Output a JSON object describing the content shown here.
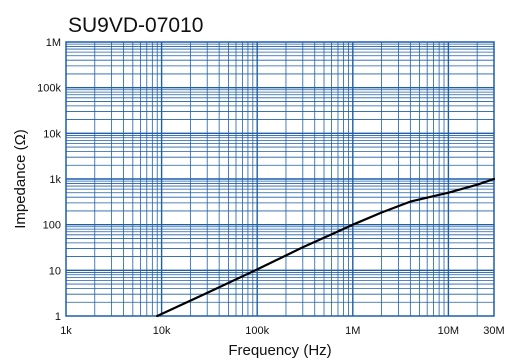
{
  "chart_data": {
    "type": "line",
    "title": "SU9VD-07010",
    "xlabel": "Frequency (Hz)",
    "ylabel": "Impedance (Ω)",
    "x_scale": "log",
    "y_scale": "log",
    "xlim": [
      1000,
      30000000
    ],
    "ylim": [
      1,
      1000000
    ],
    "x_ticks": [
      {
        "value": 1000,
        "label": "1k"
      },
      {
        "value": 10000,
        "label": "10k"
      },
      {
        "value": 100000,
        "label": "100k"
      },
      {
        "value": 1000000,
        "label": "1M"
      },
      {
        "value": 10000000,
        "label": "10M"
      },
      {
        "value": 30000000,
        "label": "30M"
      }
    ],
    "y_ticks": [
      {
        "value": 1,
        "label": "1"
      },
      {
        "value": 10,
        "label": "10"
      },
      {
        "value": 100,
        "label": "100"
      },
      {
        "value": 1000,
        "label": "1k"
      },
      {
        "value": 10000,
        "label": "10k"
      },
      {
        "value": 100000,
        "label": "100k"
      },
      {
        "value": 1000000,
        "label": "1M"
      }
    ],
    "grid": true,
    "colors": {
      "grid": "#1f5fa8",
      "line": "#000000"
    },
    "series": [
      {
        "x": [
          9000,
          30000,
          100000,
          300000,
          1000000,
          2000000,
          4000000,
          10000000,
          20000000,
          30000000
        ],
        "y": [
          1,
          3.2,
          10.5,
          32,
          100,
          185,
          320,
          500,
          750,
          1000
        ]
      }
    ]
  }
}
